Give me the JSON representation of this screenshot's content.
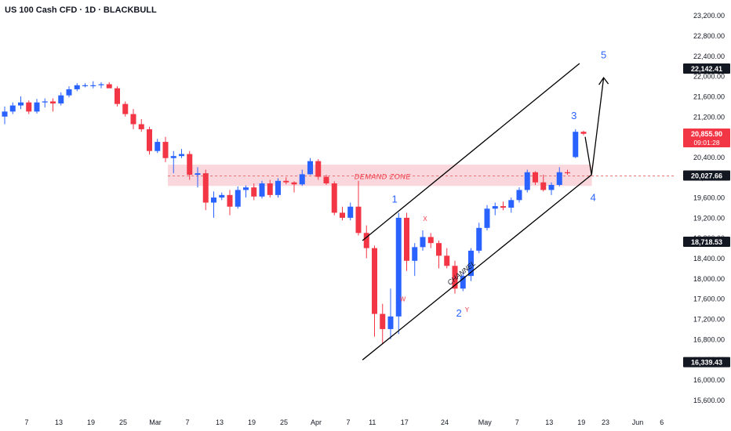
{
  "header": {
    "title": "US 100 Cash CFD · 1D · BLACKBULL"
  },
  "colors": {
    "up": "#2962ff",
    "down": "#f23645",
    "zone_fill": "#f8d0d6",
    "zone_line": "#e57373",
    "line": "#000000",
    "wave": "#2962ff",
    "annot_red": "#f23645"
  },
  "chart_data": {
    "type": "candlestick",
    "title": "US 100 Cash CFD · 1D · BLACKBULL",
    "y_axis": {
      "range": [
        15450,
        23350
      ],
      "ticks": [
        "23,200.00",
        "22,800.00",
        "22,400.00",
        "22,000.00",
        "21,600.00",
        "21,200.00",
        "20,800.00",
        "20,400.00",
        "20,000.00",
        "19,600.00",
        "19,200.00",
        "18,800.00",
        "18,400.00",
        "18,000.00",
        "17,600.00",
        "17,200.00",
        "16,800.00",
        "16,400.00",
        "16,000.00",
        "15,600.00"
      ],
      "tick_values": [
        23200,
        22800,
        22400,
        22000,
        21600,
        21200,
        20800,
        20400,
        20000,
        19600,
        19200,
        18800,
        18400,
        18000,
        17600,
        17200,
        16800,
        16400,
        16000,
        15600
      ]
    },
    "x_axis": {
      "labels": [
        "7",
        "13",
        "19",
        "25",
        "Mar",
        "7",
        "13",
        "19",
        "25",
        "Apr",
        "7",
        "11",
        "17",
        "24",
        "May",
        "7",
        "13",
        "19",
        "23",
        "Jun",
        "6"
      ],
      "label_index": [
        0,
        4,
        8,
        12,
        16,
        20,
        24,
        28,
        32,
        36,
        40,
        43,
        47,
        52,
        57,
        61,
        65,
        69,
        72,
        76,
        79
      ]
    },
    "candles": [
      {
        "o": 21200,
        "h": 21400,
        "l": 21050,
        "c": 21300
      },
      {
        "o": 21300,
        "h": 21480,
        "l": 21250,
        "c": 21420
      },
      {
        "o": 21420,
        "h": 21600,
        "l": 21350,
        "c": 21480
      },
      {
        "o": 21480,
        "h": 21520,
        "l": 21250,
        "c": 21300
      },
      {
        "o": 21300,
        "h": 21550,
        "l": 21260,
        "c": 21480
      },
      {
        "o": 21480,
        "h": 21560,
        "l": 21380,
        "c": 21500
      },
      {
        "o": 21500,
        "h": 21560,
        "l": 21300,
        "c": 21460
      },
      {
        "o": 21460,
        "h": 21680,
        "l": 21420,
        "c": 21620
      },
      {
        "o": 21620,
        "h": 21800,
        "l": 21580,
        "c": 21740
      },
      {
        "o": 21740,
        "h": 21860,
        "l": 21700,
        "c": 21820
      },
      {
        "o": 21820,
        "h": 21860,
        "l": 21780,
        "c": 21820
      },
      {
        "o": 21820,
        "h": 21900,
        "l": 21760,
        "c": 21820
      },
      {
        "o": 21820,
        "h": 21880,
        "l": 21760,
        "c": 21840
      },
      {
        "o": 21840,
        "h": 21880,
        "l": 21780,
        "c": 21760
      },
      {
        "o": 21760,
        "h": 21800,
        "l": 21400,
        "c": 21450
      },
      {
        "o": 21450,
        "h": 21500,
        "l": 21200,
        "c": 21250
      },
      {
        "o": 21250,
        "h": 21350,
        "l": 20950,
        "c": 21050
      },
      {
        "o": 21050,
        "h": 21150,
        "l": 20900,
        "c": 20950
      },
      {
        "o": 20950,
        "h": 21000,
        "l": 20450,
        "c": 20520
      },
      {
        "o": 20520,
        "h": 20760,
        "l": 20480,
        "c": 20700
      },
      {
        "o": 20700,
        "h": 20800,
        "l": 20300,
        "c": 20380
      },
      {
        "o": 20380,
        "h": 20520,
        "l": 20080,
        "c": 20420
      },
      {
        "o": 20420,
        "h": 20560,
        "l": 20380,
        "c": 20460
      },
      {
        "o": 20460,
        "h": 20520,
        "l": 19950,
        "c": 20050
      },
      {
        "o": 20050,
        "h": 20200,
        "l": 19800,
        "c": 20080
      },
      {
        "o": 20080,
        "h": 20150,
        "l": 19350,
        "c": 19500
      },
      {
        "o": 19500,
        "h": 19720,
        "l": 19200,
        "c": 19600
      },
      {
        "o": 19600,
        "h": 19700,
        "l": 19550,
        "c": 19650
      },
      {
        "o": 19650,
        "h": 19750,
        "l": 19250,
        "c": 19420
      },
      {
        "o": 19420,
        "h": 19820,
        "l": 19380,
        "c": 19750
      },
      {
        "o": 19750,
        "h": 19840,
        "l": 19600,
        "c": 19800
      },
      {
        "o": 19800,
        "h": 19880,
        "l": 19550,
        "c": 19620
      },
      {
        "o": 19620,
        "h": 19930,
        "l": 19580,
        "c": 19880
      },
      {
        "o": 19880,
        "h": 19950,
        "l": 19600,
        "c": 19650
      },
      {
        "o": 19650,
        "h": 19980,
        "l": 19600,
        "c": 19930
      },
      {
        "o": 19930,
        "h": 20000,
        "l": 19860,
        "c": 19900
      },
      {
        "o": 19900,
        "h": 19920,
        "l": 19700,
        "c": 19860
      },
      {
        "o": 19860,
        "h": 20150,
        "l": 19830,
        "c": 20060
      },
      {
        "o": 20060,
        "h": 20380,
        "l": 20050,
        "c": 20320
      },
      {
        "o": 20320,
        "h": 20360,
        "l": 19950,
        "c": 20010
      },
      {
        "o": 20010,
        "h": 20050,
        "l": 19850,
        "c": 19880
      },
      {
        "o": 19880,
        "h": 19920,
        "l": 19250,
        "c": 19300
      },
      {
        "o": 19300,
        "h": 19420,
        "l": 19150,
        "c": 19200
      },
      {
        "o": 19200,
        "h": 19500,
        "l": 19150,
        "c": 19420
      },
      {
        "o": 19420,
        "h": 19930,
        "l": 18850,
        "c": 18900
      },
      {
        "o": 18900,
        "h": 19050,
        "l": 18400,
        "c": 18600
      },
      {
        "o": 18600,
        "h": 18650,
        "l": 16850,
        "c": 17300
      },
      {
        "o": 17300,
        "h": 17500,
        "l": 16700,
        "c": 17000
      },
      {
        "o": 17000,
        "h": 17800,
        "l": 16800,
        "c": 17250
      },
      {
        "o": 17250,
        "h": 19300,
        "l": 16900,
        "c": 19200
      },
      {
        "o": 19200,
        "h": 19300,
        "l": 18150,
        "c": 18350
      },
      {
        "o": 18350,
        "h": 18700,
        "l": 18050,
        "c": 18620
      },
      {
        "o": 18620,
        "h": 18950,
        "l": 18550,
        "c": 18820
      },
      {
        "o": 18820,
        "h": 18900,
        "l": 18600,
        "c": 18700
      },
      {
        "o": 18700,
        "h": 18750,
        "l": 18200,
        "c": 18450
      },
      {
        "o": 18450,
        "h": 18600,
        "l": 18200,
        "c": 18250
      },
      {
        "o": 18250,
        "h": 18350,
        "l": 17700,
        "c": 17800
      },
      {
        "o": 17800,
        "h": 18100,
        "l": 17750,
        "c": 18050
      },
      {
        "o": 18050,
        "h": 18600,
        "l": 17950,
        "c": 18550
      },
      {
        "o": 18550,
        "h": 19100,
        "l": 18500,
        "c": 19000
      },
      {
        "o": 19000,
        "h": 19450,
        "l": 18950,
        "c": 19380
      },
      {
        "o": 19380,
        "h": 19500,
        "l": 19250,
        "c": 19430
      },
      {
        "o": 19430,
        "h": 19520,
        "l": 19350,
        "c": 19400
      },
      {
        "o": 19400,
        "h": 19600,
        "l": 19300,
        "c": 19550
      },
      {
        "o": 19550,
        "h": 19800,
        "l": 19500,
        "c": 19750
      },
      {
        "o": 19750,
        "h": 20150,
        "l": 19700,
        "c": 20100
      },
      {
        "o": 20100,
        "h": 20120,
        "l": 19850,
        "c": 19900
      },
      {
        "o": 19900,
        "h": 20050,
        "l": 19720,
        "c": 19750
      },
      {
        "o": 19750,
        "h": 19900,
        "l": 19650,
        "c": 19850
      },
      {
        "o": 19850,
        "h": 20200,
        "l": 19820,
        "c": 20100
      },
      {
        "o": 20100,
        "h": 20150,
        "l": 20050,
        "c": 20080
      },
      {
        "o": 20400,
        "h": 20950,
        "l": 20380,
        "c": 20900
      },
      {
        "o": 20900,
        "h": 20920,
        "l": 20830,
        "c": 20860
      }
    ],
    "demand_zone": {
      "label": "DEMAND ZONE",
      "low": 19830,
      "high": 20250,
      "mid": 20027.66
    },
    "channel": {
      "label": "CHANNEL",
      "lower": [
        [
          44.5,
          16390
        ],
        [
          73,
          20050
        ]
      ],
      "upper": [
        [
          44.5,
          18750
        ],
        [
          71.5,
          22250
        ]
      ]
    },
    "projection": {
      "points": [
        [
          72.2,
          20800
        ],
        [
          73,
          20050
        ],
        [
          74.5,
          21970
        ]
      ]
    },
    "wave_labels": [
      {
        "text": "1",
        "i": 48.5,
        "v": 19500
      },
      {
        "text": "2",
        "i": 56.5,
        "v": 17250
      },
      {
        "text": "3",
        "i": 70.8,
        "v": 21150
      },
      {
        "text": "4",
        "i": 73.2,
        "v": 19530
      },
      {
        "text": "5",
        "i": 74.5,
        "v": 22350
      }
    ],
    "annotations": [
      {
        "text": "X",
        "i": 52.3,
        "v": 19140
      },
      {
        "text": "W",
        "i": 49.5,
        "v": 17550
      },
      {
        "text": "Y",
        "i": 57.5,
        "v": 17340
      }
    ],
    "price_labels": [
      {
        "text": "22,142.41",
        "v": 22142.41,
        "style": "dark"
      },
      {
        "text": "20,855.90",
        "v": 20855.9,
        "style": "red",
        "sub": "09:01:28"
      },
      {
        "text": "20,027.66",
        "v": 20027.66,
        "style": "dark"
      },
      {
        "text": "18,718.53",
        "v": 18718.53,
        "style": "dark"
      },
      {
        "text": "16,339.43",
        "v": 16339.43,
        "style": "dark"
      }
    ]
  }
}
